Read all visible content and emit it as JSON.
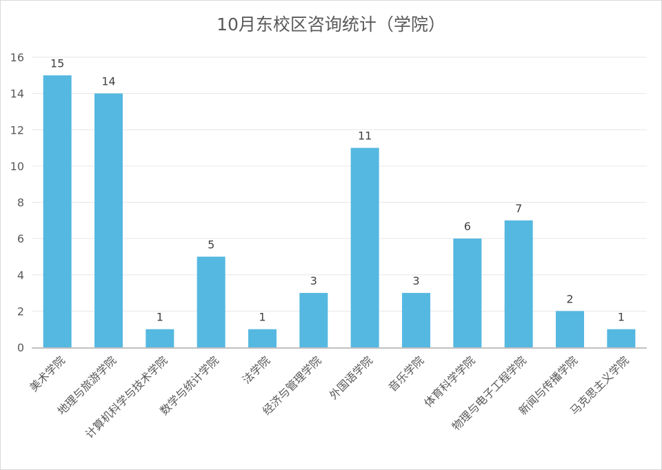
{
  "chart_data": {
    "type": "bar",
    "title": "10月东校区咨询统计（学院）",
    "xlabel": "",
    "ylabel": "",
    "categories": [
      "美术学院",
      "地理与旅游学院",
      "计算机科学与技术学院",
      "数学与统计学院",
      "法学院",
      "经济与管理学院",
      "外国语学院",
      "音乐学院",
      "体育科学学院",
      "物理与电子工程学院",
      "新闻与传播学院",
      "马克思主义学院"
    ],
    "values": [
      15,
      14,
      1,
      5,
      1,
      3,
      11,
      3,
      6,
      7,
      2,
      1
    ],
    "ylim": [
      0,
      16
    ],
    "yticks": [
      0,
      2,
      4,
      6,
      8,
      10,
      12,
      14,
      16
    ],
    "grid": true,
    "legend": "none",
    "data_labels": true,
    "bar_color": "#55b8e0"
  }
}
